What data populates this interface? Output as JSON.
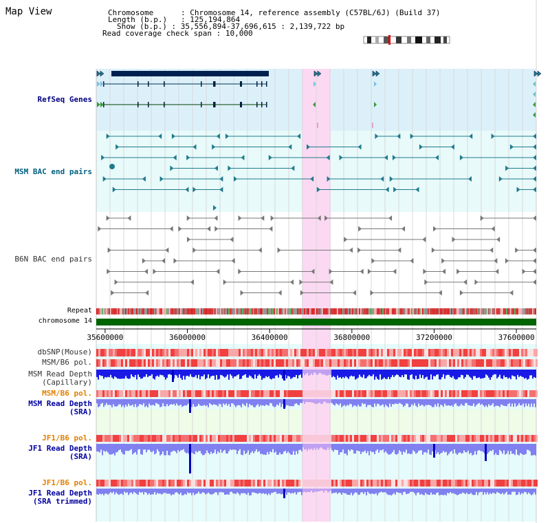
{
  "page": {
    "title": "Map View"
  },
  "header": {
    "lines": [
      {
        "label": "Chromosome",
        "value": "Chromosome 14, reference assembly (C57BL/6J) (Build 37)"
      },
      {
        "label": "Length (b.p.)",
        "value": "125,194,864"
      },
      {
        "label": "Show (b.p.)",
        "value": "35,556,894-37,696,615 : 2,139,722 bp"
      },
      {
        "label": "Read coverage check span",
        "value": "10,000"
      }
    ]
  },
  "view": {
    "start": 35556894,
    "end": 37696615,
    "highlight": [
      36556894,
      36696894
    ]
  },
  "axis": {
    "ticks": [
      {
        "label": "35600000",
        "value": 35600000
      },
      {
        "label": "36000000",
        "value": 36000000
      },
      {
        "label": "36400000",
        "value": 36400000
      },
      {
        "label": "36800000",
        "value": 36800000
      },
      {
        "label": "37200000",
        "value": 37200000
      },
      {
        "label": "37600000",
        "value": 37600000
      }
    ]
  },
  "tracks": [
    {
      "id": "refseq",
      "label": "RefSeq Genes",
      "color": "#000080"
    },
    {
      "id": "msm-bac",
      "label": "MSM BAC end pairs",
      "color": "#005f7f"
    },
    {
      "id": "b6n-bac",
      "label": "B6N BAC end pairs",
      "color": "#333333"
    },
    {
      "id": "repeat",
      "label": "Repeat",
      "color": "#000000"
    },
    {
      "id": "chromosome",
      "label": "chromosome 14",
      "color": "#000000"
    },
    {
      "id": "dbsnp",
      "label": "dbSNP(Mouse)",
      "color": "#333333"
    },
    {
      "id": "msm-b6-pol-1",
      "label": "MSM/B6 pol.",
      "color": "#333333"
    },
    {
      "id": "msm-depth-cap",
      "label": "MSM Read Depth",
      "sublabel": "(Capillary)",
      "color": "#333333"
    },
    {
      "id": "msm-b6-pol-2",
      "label": "MSM/B6 pol.",
      "color": "#e08000"
    },
    {
      "id": "msm-depth-sra",
      "label": "MSM Read Depth",
      "sublabel": "(SRA)",
      "color": "#0000a0"
    },
    {
      "id": "jf1-b6-pol-1",
      "label": "JF1/B6 pol.",
      "color": "#e08000"
    },
    {
      "id": "jf1-depth-sra",
      "label": "JF1 Read Depth",
      "sublabel": "(SRA)",
      "color": "#0000a0"
    },
    {
      "id": "jf1-b6-pol-2",
      "label": "JF1/B6 pol.",
      "color": "#e08000"
    },
    {
      "id": "jf1-depth-trim",
      "label": "JF1 Read Depth",
      "sublabel": "(SRA trimmed)",
      "color": "#0000a0"
    }
  ],
  "colors": {
    "refseq_bg": "#dcf0fa",
    "msm_bg": "#e8fafa",
    "highlight": "#fcd9f2",
    "gene_dark": "#002050",
    "msm_feature": "#1f7a8c",
    "b6n_feature": "#777777",
    "chromosome_bar": "#006400",
    "depth_dark": "#1a1ae6",
    "depth_light": "#8080f0"
  }
}
